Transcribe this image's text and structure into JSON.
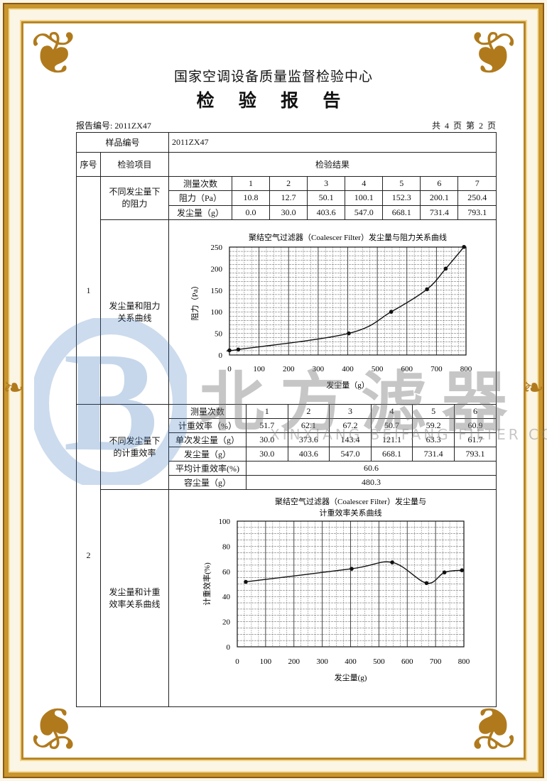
{
  "header": {
    "org_title": "国家空调设备质量监督检验中心",
    "doc_title": "检 验 报 告",
    "report_no": "报告编号: 2011ZX47",
    "page_info": "共 4 页 第 2 页"
  },
  "table": {
    "sample_label": "样品编号",
    "sample_value": "2011ZX47",
    "col_seq": "序号",
    "col_item": "检验项目",
    "col_result": "检验结果",
    "section1": {
      "seq": "1",
      "item_resistance": "不同发尘量下的阻力",
      "item_curve": "发尘量和阻力关系曲线",
      "rows": [
        {
          "label": "测量次数",
          "values": [
            "1",
            "2",
            "3",
            "4",
            "5",
            "6",
            "7"
          ]
        },
        {
          "label": "阻力（Pa）",
          "values": [
            "10.8",
            "12.7",
            "50.1",
            "100.1",
            "152.3",
            "200.1",
            "250.4"
          ]
        },
        {
          "label": "发尘量（g）",
          "values": [
            "0.0",
            "30.0",
            "403.6",
            "547.0",
            "668.1",
            "731.4",
            "793.1"
          ]
        }
      ]
    },
    "section2": {
      "seq": "2",
      "item_efficiency": "不同发尘量下的计重效率",
      "item_curve": "发尘量和计重效率关系曲线",
      "rows": [
        {
          "label": "测量次数",
          "values": [
            "1",
            "2",
            "3",
            "4",
            "5",
            "6"
          ]
        },
        {
          "label": "计重效率（%）",
          "values": [
            "51.7",
            "62.1",
            "67.2",
            "50.7",
            "59.2",
            "60.9"
          ]
        },
        {
          "label": "单次发尘量（g）",
          "values": [
            "30.0",
            "373.6",
            "143.4",
            "121.1",
            "63.3",
            "61.7"
          ]
        },
        {
          "label": "发尘量（g）",
          "values": [
            "30.0",
            "403.6",
            "547.0",
            "668.1",
            "731.4",
            "793.1"
          ]
        }
      ],
      "avg_label": "平均计重效率(%)",
      "avg_value": "60.6",
      "capacity_label": "容尘量（g）",
      "capacity_value": "480.3"
    }
  },
  "chart_data": [
    {
      "type": "line",
      "title": "聚结空气过滤器（Coalescer Filter）发尘量与阻力关系曲线",
      "xlabel": "发尘量（g）",
      "ylabel": "阻力（Pa）",
      "xlim": [
        0,
        800
      ],
      "ylim": [
        0,
        250
      ],
      "xticks": [
        0,
        100,
        200,
        300,
        400,
        500,
        600,
        700,
        800
      ],
      "yticks": [
        0,
        50,
        100,
        150,
        200,
        250
      ],
      "grid": true,
      "x": [
        0,
        30,
        403.6,
        547,
        668.1,
        731.4,
        793.1
      ],
      "y": [
        10.8,
        12.7,
        50.1,
        100.1,
        152.3,
        200.1,
        250.4
      ]
    },
    {
      "type": "line",
      "title": [
        "聚结空气过滤器（Coalescer Filter）发尘量与",
        "计重效率关系曲线"
      ],
      "xlabel": "发尘量(g)",
      "ylabel": "计重效率(%)",
      "xlim": [
        0,
        800
      ],
      "ylim": [
        0,
        100
      ],
      "xticks": [
        0,
        100,
        200,
        300,
        400,
        500,
        600,
        700,
        800
      ],
      "yticks": [
        0,
        20,
        40,
        60,
        80,
        100
      ],
      "grid": true,
      "x": [
        30,
        403.6,
        547,
        668.1,
        731.4,
        793.1
      ],
      "y": [
        51.7,
        62.1,
        67.2,
        50.7,
        59.2,
        60.9
      ]
    }
  ],
  "watermark": {
    "brand": "北方滤器",
    "company": "XINXIANG BEIFANG FILTER CO.,LTD.",
    "logo_letter": "B",
    "logo_color": "#2f6db5"
  },
  "colors": {
    "frame_gold": "#c9962e",
    "ink": "#111111"
  }
}
